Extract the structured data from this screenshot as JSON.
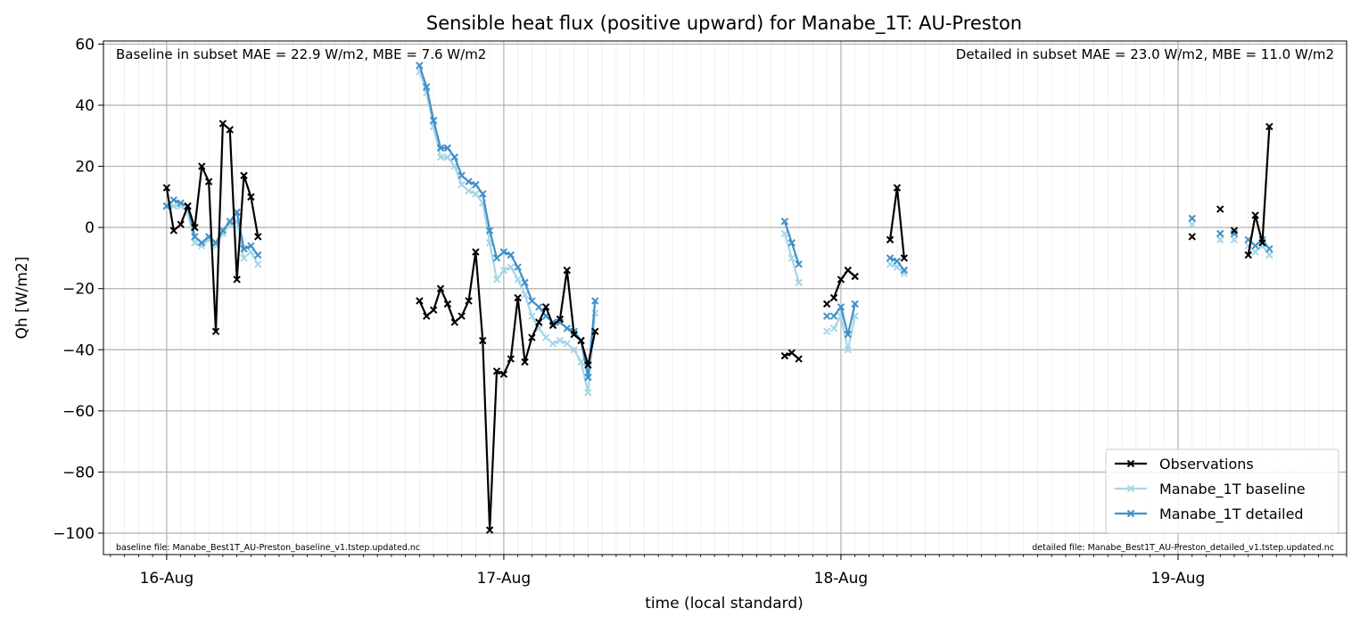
{
  "chart_data": {
    "type": "line",
    "title": "Sensible heat flux (positive upward) for Manabe_1T: AU-Preston",
    "xlabel": "time (local standard)",
    "ylabel": "Qh [W/m2]",
    "xlim": [
      "2011-08-15T19:30",
      "2011-08-19T12:00"
    ],
    "ylim": [
      -107,
      61
    ],
    "yticks": [
      -100,
      -80,
      -60,
      -40,
      -20,
      0,
      20,
      40,
      60
    ],
    "ytick_labels": [
      "−100",
      "−80",
      "−60",
      "−40",
      "−20",
      "0",
      "20",
      "40",
      "60"
    ],
    "xticks": [
      "2011-08-16T00:00",
      "2011-08-17T00:00",
      "2011-08-18T00:00",
      "2011-08-19T00:00"
    ],
    "xtick_labels": [
      "16-Aug",
      "17-Aug",
      "18-Aug",
      "19-Aug"
    ],
    "grid": true,
    "legend_position": "lower-right",
    "annotations": {
      "baseline_stats": "Baseline in subset MAE = 22.9 W/m2, MBE = 7.6 W/m2",
      "detailed_stats": "Detailed in subset MAE = 23.0 W/m2, MBE = 11.0 W/m2",
      "baseline_file": "baseline file: Manabe_Best1T_AU-Preston_baseline_v1.tstep.updated.nc",
      "detailed_file": "detailed file: Manabe_Best1T_AU-Preston_detailed_v1.tstep.updated.nc"
    },
    "series": [
      {
        "name": "Observations",
        "color": "#000000",
        "segments": [
          [
            [
              "2011-08-16T00:00",
              13
            ],
            [
              "2011-08-16T00:30",
              -1
            ],
            [
              "2011-08-16T01:00",
              1
            ],
            [
              "2011-08-16T01:30",
              7
            ],
            [
              "2011-08-16T02:00",
              0
            ],
            [
              "2011-08-16T02:30",
              20
            ],
            [
              "2011-08-16T03:00",
              15
            ],
            [
              "2011-08-16T03:30",
              -34
            ],
            [
              "2011-08-16T04:00",
              34
            ],
            [
              "2011-08-16T04:30",
              32
            ],
            [
              "2011-08-16T05:00",
              -17
            ],
            [
              "2011-08-16T05:30",
              17
            ],
            [
              "2011-08-16T06:00",
              10
            ],
            [
              "2011-08-16T06:30",
              -3
            ]
          ],
          [
            [
              "2011-08-16T18:00",
              -24
            ],
            [
              "2011-08-16T18:30",
              -29
            ],
            [
              "2011-08-16T19:00",
              -27
            ],
            [
              "2011-08-16T19:30",
              -20
            ],
            [
              "2011-08-16T20:00",
              -25
            ],
            [
              "2011-08-16T20:30",
              -31
            ],
            [
              "2011-08-16T21:00",
              -29
            ],
            [
              "2011-08-16T21:30",
              -24
            ],
            [
              "2011-08-16T22:00",
              -8
            ],
            [
              "2011-08-16T22:30",
              -37
            ],
            [
              "2011-08-16T23:00",
              -99
            ],
            [
              "2011-08-16T23:30",
              -47
            ],
            [
              "2011-08-17T00:00",
              -48
            ],
            [
              "2011-08-17T00:30",
              -43
            ],
            [
              "2011-08-17T01:00",
              -23
            ],
            [
              "2011-08-17T01:30",
              -44
            ],
            [
              "2011-08-17T02:00",
              -36
            ],
            [
              "2011-08-17T02:30",
              -31
            ],
            [
              "2011-08-17T03:00",
              -26
            ],
            [
              "2011-08-17T03:30",
              -32
            ],
            [
              "2011-08-17T04:00",
              -30
            ],
            [
              "2011-08-17T04:30",
              -14
            ],
            [
              "2011-08-17T05:00",
              -35
            ],
            [
              "2011-08-17T05:30",
              -37
            ],
            [
              "2011-08-17T06:00",
              -45
            ],
            [
              "2011-08-17T06:30",
              -34
            ]
          ],
          [
            [
              "2011-08-17T20:00",
              -42
            ],
            [
              "2011-08-17T20:30",
              -41
            ],
            [
              "2011-08-17T21:00",
              -43
            ]
          ],
          [
            [
              "2011-08-17T23:00",
              -25
            ]
          ],
          [
            [
              "2011-08-17T23:30",
              -23
            ],
            [
              "2011-08-18T00:00",
              -17
            ],
            [
              "2011-08-18T00:30",
              -14
            ],
            [
              "2011-08-18T01:00",
              -16
            ]
          ],
          [
            [
              "2011-08-18T03:30",
              -4
            ],
            [
              "2011-08-18T04:00",
              13
            ],
            [
              "2011-08-18T04:30",
              -10
            ]
          ],
          [
            [
              "2011-08-19T01:00",
              -3
            ]
          ],
          [
            [
              "2011-08-19T03:00",
              6
            ]
          ],
          [
            [
              "2011-08-19T04:00",
              -1
            ]
          ],
          [
            [
              "2011-08-19T05:00",
              -9
            ],
            [
              "2011-08-19T05:30",
              4
            ],
            [
              "2011-08-19T06:00",
              -5
            ],
            [
              "2011-08-19T06:30",
              33
            ]
          ]
        ]
      },
      {
        "name": "Manabe_1T baseline",
        "color": "#a6d6e8",
        "segments": [
          [
            [
              "2011-08-16T00:00",
              7
            ],
            [
              "2011-08-16T00:30",
              7
            ],
            [
              "2011-08-16T01:00",
              7
            ],
            [
              "2011-08-16T01:30",
              5
            ],
            [
              "2011-08-16T02:00",
              -5
            ],
            [
              "2011-08-16T02:30",
              -6
            ],
            [
              "2011-08-16T03:00",
              -4
            ],
            [
              "2011-08-16T03:30",
              -6
            ],
            [
              "2011-08-16T04:00",
              -2
            ],
            [
              "2011-08-16T04:30",
              1
            ],
            [
              "2011-08-16T05:00",
              2
            ],
            [
              "2011-08-16T05:30",
              -10
            ],
            [
              "2011-08-16T06:00",
              -8
            ],
            [
              "2011-08-16T06:30",
              -12
            ]
          ],
          [
            [
              "2011-08-16T18:00",
              51
            ],
            [
              "2011-08-16T18:30",
              44
            ],
            [
              "2011-08-16T19:00",
              33
            ],
            [
              "2011-08-16T19:30",
              23
            ],
            [
              "2011-08-16T20:00",
              23
            ],
            [
              "2011-08-16T20:30",
              20
            ],
            [
              "2011-08-16T21:00",
              14
            ],
            [
              "2011-08-16T21:30",
              12
            ],
            [
              "2011-08-16T22:00",
              11
            ],
            [
              "2011-08-16T22:30",
              8
            ],
            [
              "2011-08-16T23:00",
              -5
            ],
            [
              "2011-08-16T23:30",
              -17
            ],
            [
              "2011-08-17T00:00",
              -14
            ],
            [
              "2011-08-17T00:30",
              -13
            ],
            [
              "2011-08-17T01:00",
              -17
            ],
            [
              "2011-08-17T01:30",
              -22
            ],
            [
              "2011-08-17T02:00",
              -29
            ],
            [
              "2011-08-17T02:30",
              -33
            ],
            [
              "2011-08-17T03:00",
              -36
            ],
            [
              "2011-08-17T03:30",
              -38
            ],
            [
              "2011-08-17T04:00",
              -37
            ],
            [
              "2011-08-17T04:30",
              -38
            ],
            [
              "2011-08-17T05:00",
              -40
            ],
            [
              "2011-08-17T05:30",
              -44
            ],
            [
              "2011-08-17T06:00",
              -54
            ],
            [
              "2011-08-17T06:30",
              -28
            ]
          ],
          [
            [
              "2011-08-17T20:00",
              -2
            ],
            [
              "2011-08-17T20:30",
              -10
            ],
            [
              "2011-08-17T21:00",
              -18
            ]
          ],
          [
            [
              "2011-08-17T23:00",
              -34
            ]
          ],
          [
            [
              "2011-08-17T23:30",
              -33
            ],
            [
              "2011-08-18T00:00",
              -29
            ],
            [
              "2011-08-18T00:30",
              -40
            ],
            [
              "2011-08-18T01:00",
              -29
            ]
          ],
          [
            [
              "2011-08-18T03:30",
              -12
            ],
            [
              "2011-08-18T04:00",
              -13
            ],
            [
              "2011-08-18T04:30",
              -15
            ]
          ],
          [
            [
              "2011-08-19T01:00",
              1
            ]
          ],
          [
            [
              "2011-08-19T03:00",
              -4
            ]
          ],
          [
            [
              "2011-08-19T04:00",
              -4
            ]
          ],
          [
            [
              "2011-08-19T05:00",
              -6
            ],
            [
              "2011-08-19T05:30",
              -8
            ],
            [
              "2011-08-19T06:00",
              -6
            ],
            [
              "2011-08-19T06:30",
              -9
            ]
          ]
        ]
      },
      {
        "name": "Manabe_1T detailed",
        "color": "#4190c8",
        "segments": [
          [
            [
              "2011-08-16T00:00",
              7
            ],
            [
              "2011-08-16T00:30",
              9
            ],
            [
              "2011-08-16T01:00",
              8
            ],
            [
              "2011-08-16T01:30",
              7
            ],
            [
              "2011-08-16T02:00",
              -3
            ],
            [
              "2011-08-16T02:30",
              -5
            ],
            [
              "2011-08-16T03:00",
              -3
            ],
            [
              "2011-08-16T03:30",
              -5
            ],
            [
              "2011-08-16T04:00",
              -1
            ],
            [
              "2011-08-16T04:30",
              2
            ],
            [
              "2011-08-16T05:00",
              5
            ],
            [
              "2011-08-16T05:30",
              -7
            ],
            [
              "2011-08-16T06:00",
              -6
            ],
            [
              "2011-08-16T06:30",
              -9
            ]
          ],
          [
            [
              "2011-08-16T18:00",
              53
            ],
            [
              "2011-08-16T18:30",
              46
            ],
            [
              "2011-08-16T19:00",
              35
            ],
            [
              "2011-08-16T19:30",
              26
            ],
            [
              "2011-08-16T20:00",
              26
            ],
            [
              "2011-08-16T20:30",
              23
            ],
            [
              "2011-08-16T21:00",
              17
            ],
            [
              "2011-08-16T21:30",
              15
            ],
            [
              "2011-08-16T22:00",
              14
            ],
            [
              "2011-08-16T22:30",
              11
            ],
            [
              "2011-08-16T23:00",
              -1
            ],
            [
              "2011-08-16T23:30",
              -10
            ],
            [
              "2011-08-17T00:00",
              -8
            ],
            [
              "2011-08-17T00:30",
              -9
            ],
            [
              "2011-08-17T01:00",
              -13
            ],
            [
              "2011-08-17T01:30",
              -18
            ],
            [
              "2011-08-17T02:00",
              -24
            ],
            [
              "2011-08-17T02:30",
              -26
            ],
            [
              "2011-08-17T03:00",
              -29
            ],
            [
              "2011-08-17T03:30",
              -31
            ],
            [
              "2011-08-17T04:00",
              -31
            ],
            [
              "2011-08-17T04:30",
              -33
            ],
            [
              "2011-08-17T05:00",
              -34
            ],
            [
              "2011-08-17T05:30",
              -37
            ],
            [
              "2011-08-17T06:00",
              -49
            ],
            [
              "2011-08-17T06:30",
              -24
            ]
          ],
          [
            [
              "2011-08-17T20:00",
              2
            ],
            [
              "2011-08-17T20:30",
              -5
            ],
            [
              "2011-08-17T21:00",
              -12
            ]
          ],
          [
            [
              "2011-08-17T23:00",
              -29
            ]
          ],
          [
            [
              "2011-08-17T23:30",
              -29
            ],
            [
              "2011-08-18T00:00",
              -26
            ],
            [
              "2011-08-18T00:30",
              -35
            ],
            [
              "2011-08-18T01:00",
              -25
            ]
          ],
          [
            [
              "2011-08-18T03:30",
              -10
            ],
            [
              "2011-08-18T04:00",
              -11
            ],
            [
              "2011-08-18T04:30",
              -14
            ]
          ],
          [
            [
              "2011-08-19T01:00",
              3
            ]
          ],
          [
            [
              "2011-08-19T03:00",
              -2
            ]
          ],
          [
            [
              "2011-08-19T04:00",
              -2
            ]
          ],
          [
            [
              "2011-08-19T05:00",
              -4
            ],
            [
              "2011-08-19T05:30",
              -6
            ],
            [
              "2011-08-19T06:00",
              -4
            ],
            [
              "2011-08-19T06:30",
              -7
            ]
          ]
        ]
      }
    ]
  }
}
